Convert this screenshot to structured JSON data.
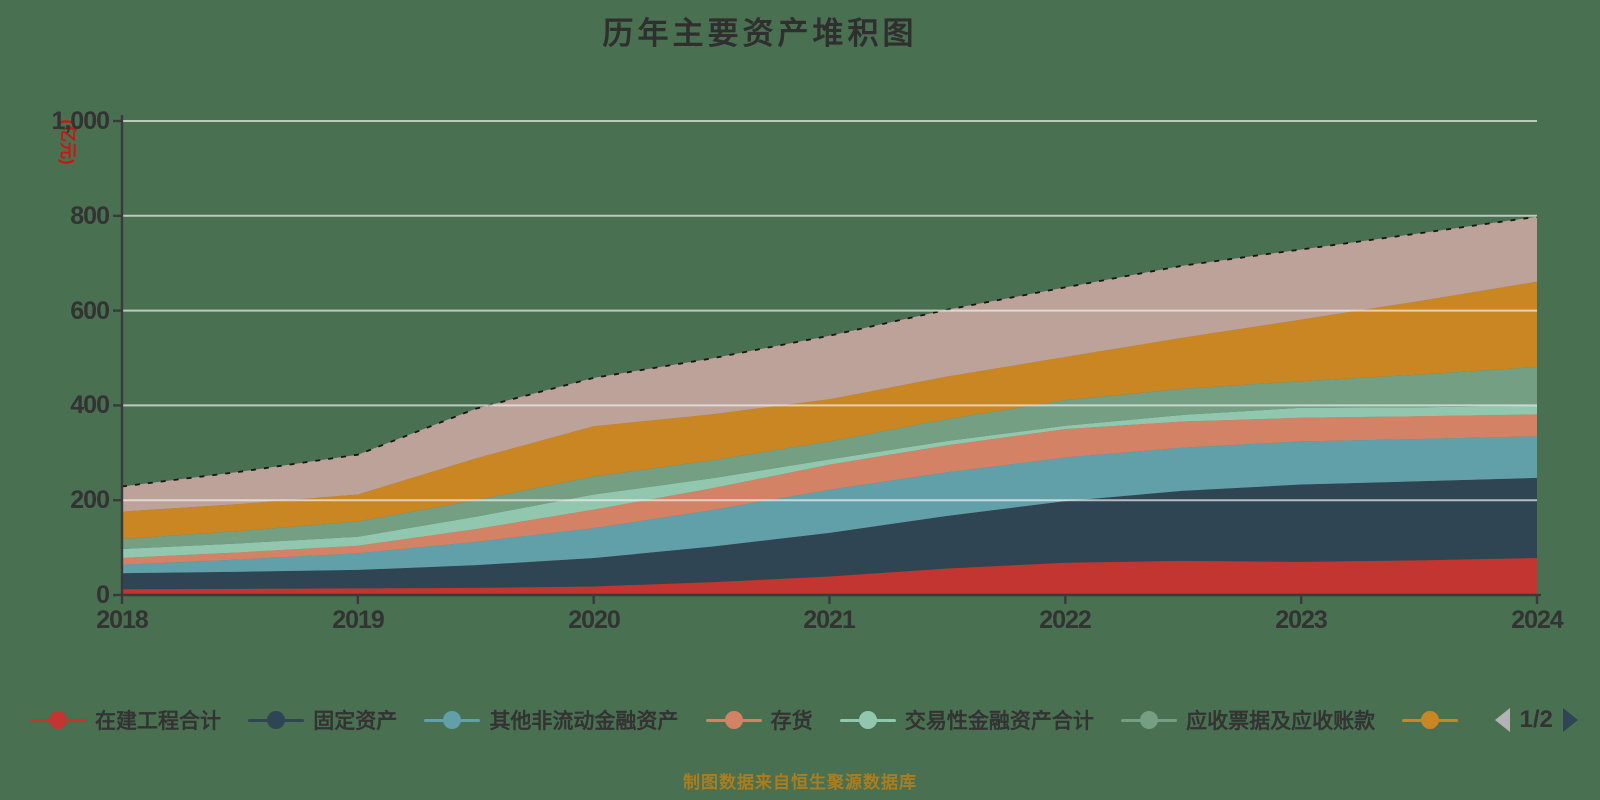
{
  "title": "历年主要资产堆积图",
  "source_note": "制图数据来自恒生聚源数据库",
  "axis": {
    "y_name": "(亿元)",
    "y_ticks": [
      "0",
      "200",
      "400",
      "600",
      "800",
      "1,000"
    ],
    "x_ticks": [
      "2018",
      "2019",
      "2020",
      "2021",
      "2022",
      "2023",
      "2024"
    ]
  },
  "legend": {
    "pager": "1/2",
    "items": [
      {
        "label": "在建工程合计",
        "color": "#c23531"
      },
      {
        "label": "固定资产",
        "color": "#2f4554"
      },
      {
        "label": "其他非流动金融资产",
        "color": "#61a0a8"
      },
      {
        "label": "存货",
        "color": "#d48265"
      },
      {
        "label": "交易性金融资产合计",
        "color": "#91c7ae"
      },
      {
        "label": "应收票据及应收账款",
        "color": "#749f83"
      },
      {
        "label": "",
        "color": "#ca8622"
      }
    ]
  },
  "colors": {
    "background": "#4a7052",
    "axis": "#3a3a3a",
    "grid": "rgba(240,240,240,0.7)",
    "top_edge": "#151515",
    "pager_prev": "#b3b3b3",
    "pager_next": "#2f4554"
  },
  "chart_data": {
    "type": "area",
    "stacked": true,
    "title": "历年主要资产堆积图",
    "ylabel": "(亿元)",
    "ylim": [
      0,
      1000
    ],
    "gridlines": [
      200,
      400,
      600,
      800,
      1000
    ],
    "legend_position": "bottom",
    "x": [
      2018,
      2018.5,
      2019,
      2019.5,
      2020,
      2020.5,
      2021,
      2021.5,
      2022,
      2022.5,
      2023,
      2023.5,
      2024
    ],
    "x_tick_years": [
      2018,
      2019,
      2020,
      2021,
      2022,
      2023,
      2024
    ],
    "series": [
      {
        "name": "在建工程合计",
        "color": "#c23531",
        "values": [
          12,
          13,
          14,
          15,
          18,
          27,
          39,
          56,
          68,
          72,
          70,
          73,
          78
        ]
      },
      {
        "name": "固定资产",
        "color": "#2f4554",
        "values": [
          34,
          36,
          39,
          48,
          60,
          75,
          92,
          111,
          130,
          148,
          163,
          167,
          169
        ]
      },
      {
        "name": "其他非流动金融资产",
        "color": "#61a0a8",
        "values": [
          18,
          26,
          35,
          49,
          63,
          77,
          91,
          92,
          92,
          91,
          91,
          89,
          88
        ]
      },
      {
        "name": "存货",
        "color": "#d48265",
        "values": [
          14,
          15,
          16,
          27,
          39,
          46,
          53,
          57,
          60,
          55,
          50,
          48,
          46
        ]
      },
      {
        "name": "交易性金融资产合计",
        "color": "#91c7ae",
        "values": [
          19,
          19,
          19,
          26,
          32,
          21,
          11,
          9,
          7,
          14,
          21,
          19,
          18
        ]
      },
      {
        "name": "应收票据及应收账款",
        "color": "#749f83",
        "values": [
          21,
          26,
          32,
          35,
          38,
          38,
          38,
          46,
          54,
          55,
          56,
          69,
          82
        ]
      },
      {
        "name": "",
        "color": "#ca8622",
        "values": [
          58,
          57,
          57,
          88,
          106,
          97,
          89,
          90,
          91,
          108,
          130,
          155,
          180
        ]
      },
      {
        "name": "",
        "color": "#bda29a",
        "values": [
          53,
          68,
          84,
          105,
          102,
          118,
          134,
          141,
          147,
          152,
          148,
          143,
          137
        ]
      }
    ]
  }
}
